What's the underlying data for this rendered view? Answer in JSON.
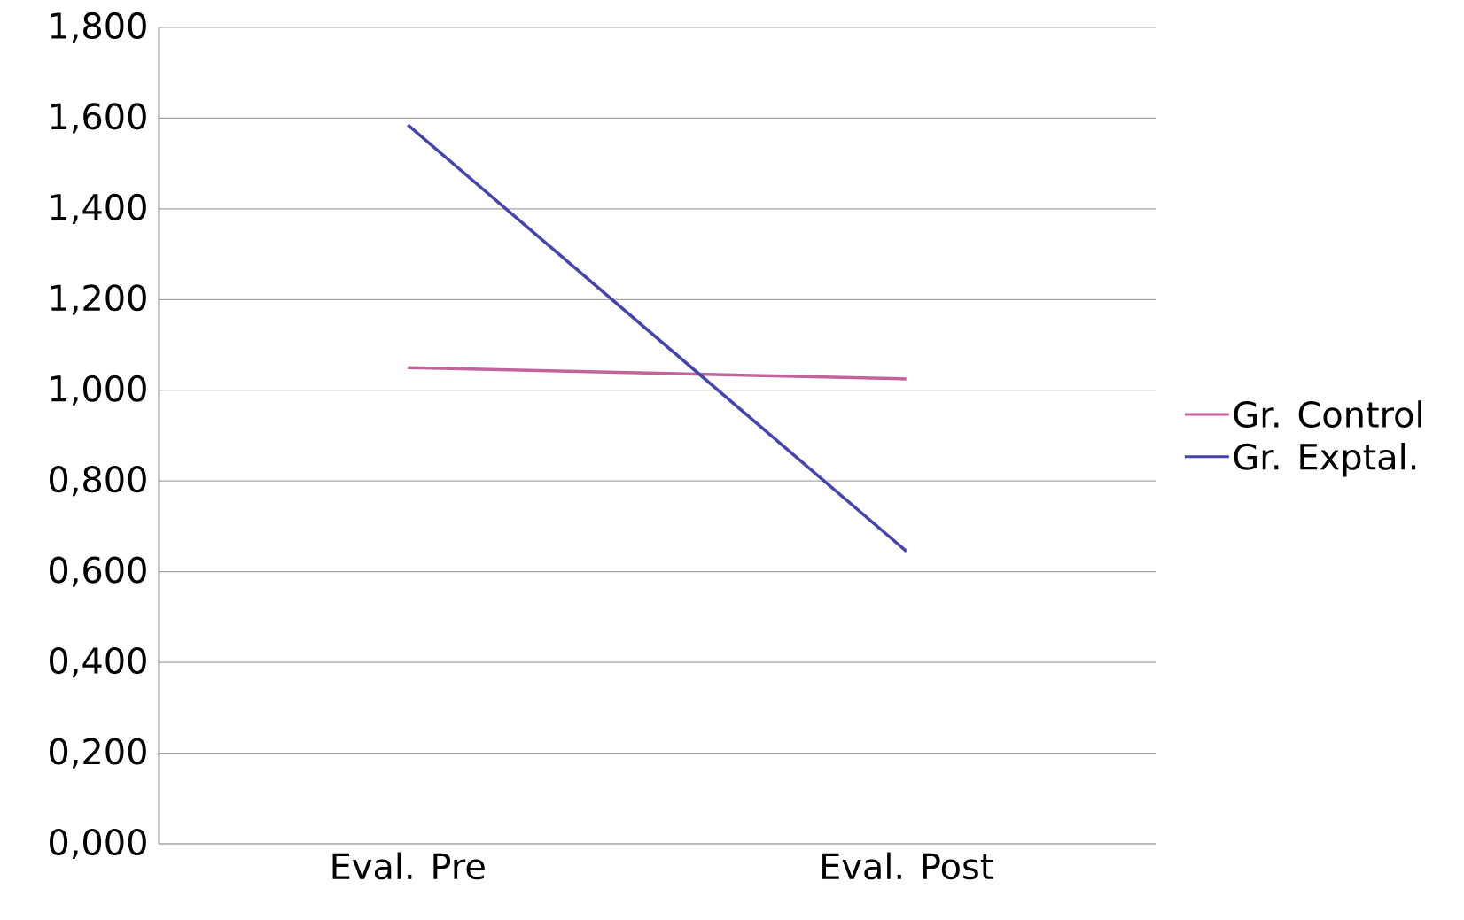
{
  "chart_data": {
    "type": "line",
    "categories": [
      "Eval. Pre",
      "Eval. Post"
    ],
    "series": [
      {
        "name": "Gr. Control",
        "color": "#c0649a",
        "values": [
          1.05,
          1.025
        ]
      },
      {
        "name": "Gr. Exptal.",
        "color": "#4444b0",
        "values": [
          1.585,
          0.645
        ]
      }
    ],
    "ylim": [
      0,
      1.8
    ],
    "yticks": [
      {
        "value": 0,
        "label": "0,000"
      },
      {
        "value": 0.2,
        "label": "0,200"
      },
      {
        "value": 0.4,
        "label": "0,400"
      },
      {
        "value": 0.6,
        "label": "0,600"
      },
      {
        "value": 0.8,
        "label": "0,800"
      },
      {
        "value": 1.0,
        "label": "1,000"
      },
      {
        "value": 1.2,
        "label": "1,200"
      },
      {
        "value": 1.4,
        "label": "1,400"
      },
      {
        "value": 1.6,
        "label": "1,600"
      },
      {
        "value": 1.8,
        "label": "1,800"
      }
    ],
    "grid": "y",
    "legend": "right",
    "marker": "none",
    "line_style": "solid"
  }
}
